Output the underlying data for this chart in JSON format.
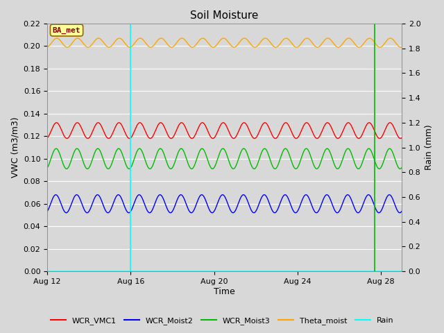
{
  "title": "Soil Moisture",
  "xlabel": "Time",
  "ylabel_left": "VWC (m3/m3)",
  "ylabel_right": "Rain (mm)",
  "ylim_left": [
    0.0,
    0.22
  ],
  "ylim_right": [
    0.0,
    2.0
  ],
  "xlim_days": [
    0,
    17
  ],
  "x_tick_labels": [
    "Aug 12",
    "Aug 16",
    "Aug 20",
    "Aug 24",
    "Aug 28"
  ],
  "x_tick_positions": [
    0,
    4,
    8,
    12,
    16
  ],
  "background_color": "#d8d8d8",
  "plot_bg_color": "#d8d8d8",
  "grid_color": "#ffffff",
  "annotation_label": "BA_met",
  "annotation_color": "#8b0000",
  "annotation_bg": "#ffff99",
  "annotation_border": "#996600",
  "cyan_vline_x": 4.0,
  "green_vline_x": 15.7,
  "colors": {
    "WCR_VMC1": "#ff0000",
    "WCR_Moist2": "#0000ff",
    "WCR_Moist3": "#00bb00",
    "Theta_moist": "#ffa500",
    "Rain": "#00ffff"
  },
  "series": {
    "WCR_VMC1": {
      "base": 0.125,
      "amp": 0.007,
      "freq": 1.0,
      "phase": -1.2
    },
    "WCR_Moist2": {
      "base": 0.06,
      "amp": 0.008,
      "freq": 1.0,
      "phase": -1.0
    },
    "WCR_Moist3": {
      "base": 0.1,
      "amp": 0.009,
      "freq": 1.0,
      "phase": -1.1
    },
    "Theta_moist": {
      "base": 0.203,
      "amp": 0.004,
      "freq": 1.0,
      "phase": -1.3
    }
  },
  "left_yticks": [
    0.0,
    0.02,
    0.04,
    0.06,
    0.08,
    0.1,
    0.12,
    0.14,
    0.16,
    0.18,
    0.2,
    0.22
  ],
  "right_yticks": [
    0.0,
    0.2,
    0.4,
    0.6,
    0.8,
    1.0,
    1.2,
    1.4,
    1.6,
    1.8,
    2.0
  ]
}
